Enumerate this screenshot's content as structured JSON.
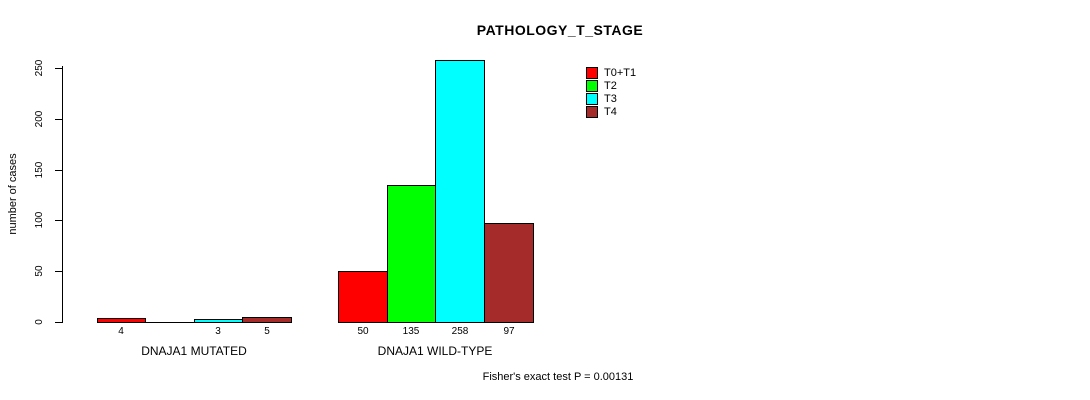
{
  "chart_data": {
    "type": "bar",
    "title": "PATHOLOGY_T_STAGE",
    "ylabel": "number of cases",
    "xlabel": "",
    "ylim": [
      0,
      250
    ],
    "yticks": [
      0,
      50,
      100,
      150,
      200,
      250
    ],
    "grid": false,
    "legend_position": "top-right",
    "categories": [
      "DNAJA1 MUTATED",
      "DNAJA1 WILD-TYPE"
    ],
    "series": [
      {
        "name": "T0+T1",
        "color": "#ff0000",
        "values": [
          4,
          50
        ]
      },
      {
        "name": "T2",
        "color": "#00ff00",
        "values": [
          0,
          135
        ]
      },
      {
        "name": "T3",
        "color": "#00ffff",
        "values": [
          3,
          258
        ]
      },
      {
        "name": "T4",
        "color": "#a52a2a",
        "values": [
          5,
          97
        ]
      }
    ],
    "bar_value_labels": [
      [
        "4",
        "",
        "3",
        "5"
      ],
      [
        "50",
        "135",
        "258",
        "97"
      ]
    ],
    "footnote": "Fisher's exact test P = 0.00131",
    "axis_color": "#000000",
    "background_color": "#ffffff"
  }
}
